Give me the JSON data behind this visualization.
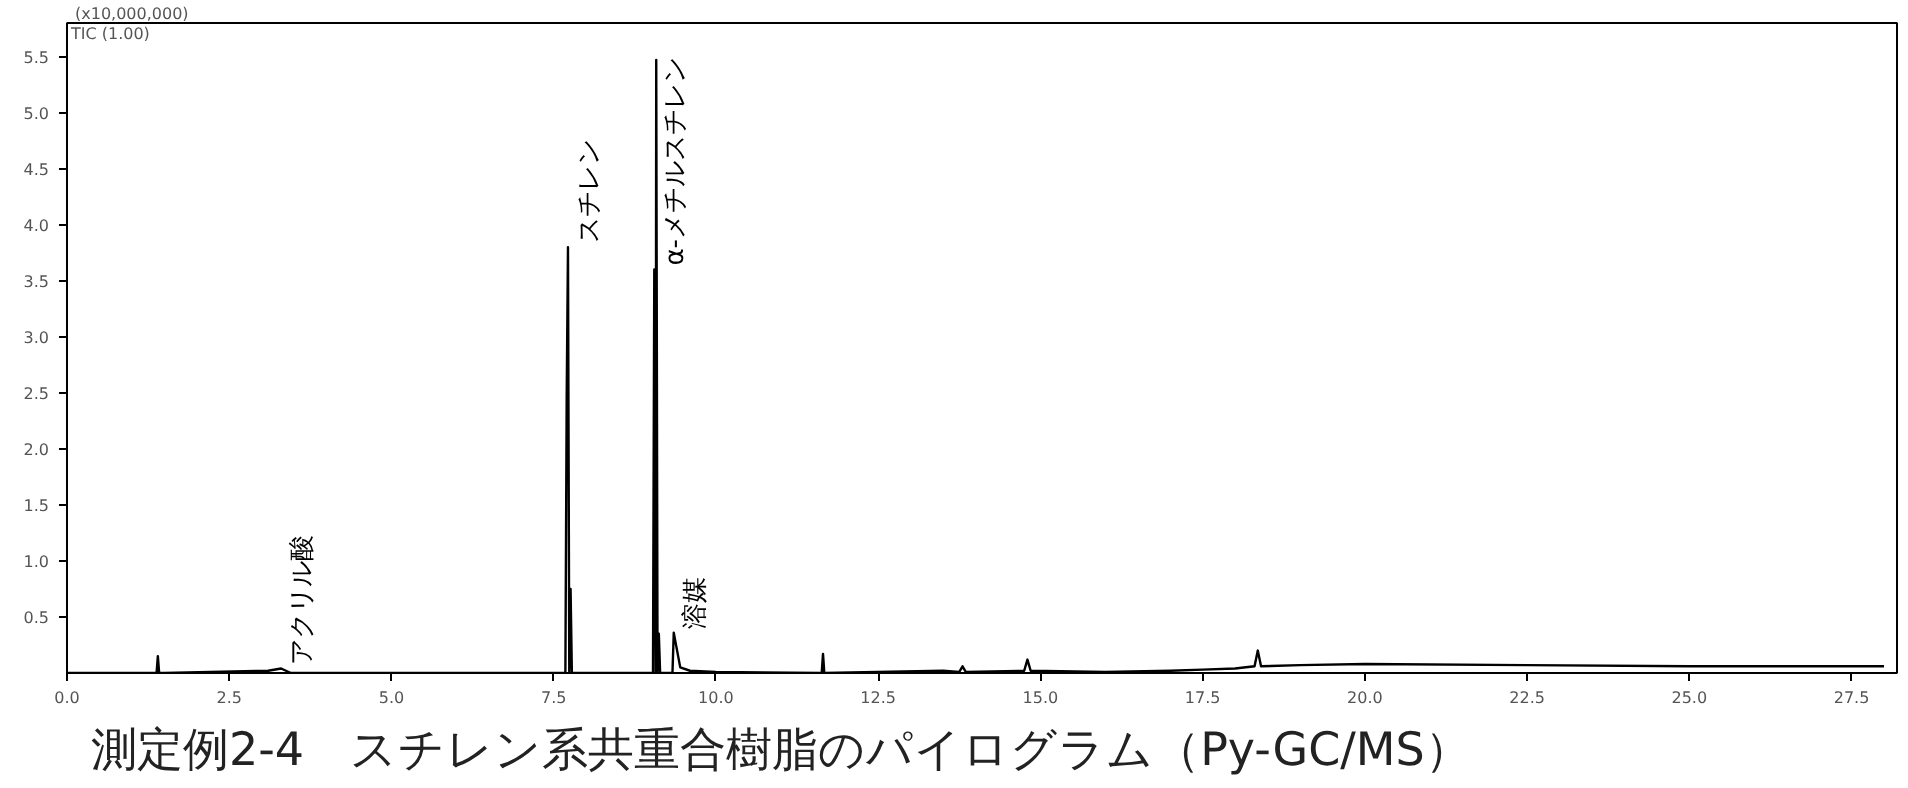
{
  "chart_data": {
    "type": "line",
    "title": "測定例2-4　スチレン系共重合樹脂のパイログラム（Py-GC/MS）",
    "annotations": [
      "(x10,000,000)",
      "TIC (1.00)",
      {
        "text": "アクリル酸",
        "x": 3.3,
        "y": 0.04
      },
      {
        "text": "スチレン",
        "x": 7.72,
        "y": 3.8
      },
      {
        "text": "α-メチルスチレン",
        "x": 9.05,
        "y": 3.6
      },
      {
        "text": "溶媒",
        "x": 9.35,
        "y": 0.36
      }
    ],
    "series": [
      {
        "color": "#000000",
        "x": [
          0,
          1.38,
          1.4,
          1.42,
          1.5,
          3.1,
          3.3,
          3.45,
          7.68,
          7.7,
          7.72,
          7.74,
          7.76,
          7.78,
          7.8,
          9.03,
          9.05,
          9.07,
          9.08,
          9.1,
          9.12,
          9.14,
          9.33,
          9.35,
          9.45,
          9.6,
          10.0,
          11.63,
          11.65,
          11.67,
          13.5,
          13.75,
          13.8,
          13.85,
          14.75,
          14.8,
          14.85,
          16.0,
          17.0,
          17.5,
          18.0,
          18.3,
          18.35,
          18.4,
          19.0,
          20.0,
          22.5,
          25.0,
          28.0
        ],
        "values": [
          0,
          0,
          0.15,
          0,
          0,
          0.02,
          0.04,
          0,
          0,
          2.45,
          3.8,
          0,
          0.75,
          0,
          0,
          0,
          3.6,
          0,
          5.47,
          0,
          0.35,
          0,
          0,
          0.36,
          0.05,
          0.02,
          0.01,
          0,
          0.17,
          0,
          0.02,
          0.01,
          0.06,
          0.01,
          0.02,
          0.12,
          0.02,
          0.01,
          0.02,
          0.03,
          0.04,
          0.06,
          0.2,
          0.06,
          0.07,
          0.08,
          0.07,
          0.06,
          0.06
        ]
      }
    ],
    "xlim": [
      0,
      28.2
    ],
    "ylim": [
      0,
      5.8
    ],
    "xticks": [
      {
        "value": 0,
        "label": "0.0"
      },
      2.5,
      {
        "value": 5,
        "label": "5.0"
      },
      7.5,
      {
        "value": 10,
        "label": "10.0"
      },
      12.5,
      {
        "value": 15,
        "label": "15.0"
      },
      17.5,
      {
        "value": 20,
        "label": "20.0"
      },
      22.5,
      {
        "value": 25,
        "label": "25.0"
      },
      27.5
    ],
    "yticks": [
      0.5,
      {
        "value": 1,
        "label": "1.0"
      },
      1.5,
      {
        "value": 2,
        "label": "2.0"
      },
      2.5,
      {
        "value": 3,
        "label": "3.0"
      },
      3.5,
      {
        "value": 4,
        "label": "4.0"
      },
      4.5,
      {
        "value": 5,
        "label": "5.0"
      },
      5.5
    ],
    "grid": false,
    "marker": "none",
    "line_style": "solid"
  }
}
